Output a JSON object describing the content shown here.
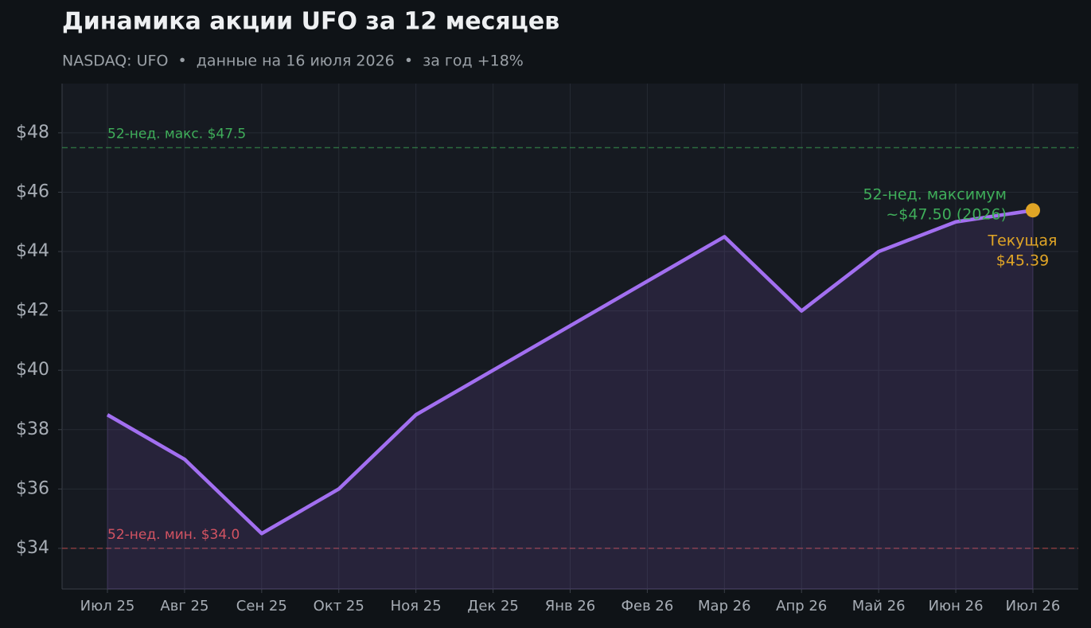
{
  "chart_data": {
    "type": "line",
    "title": "Динамика акции UFO за 12 месяцев",
    "subtitle": "NASDAQ: UFO  •  данные на 16 июля 2026  •  за год +18%",
    "categories": [
      "Июл 25",
      "Авг 25",
      "Сен 25",
      "Окт 25",
      "Ноя 25",
      "Дек 25",
      "Янв 26",
      "Фев 26",
      "Мар 26",
      "Апр 26",
      "Май 26",
      "Июн 26",
      "Июл 26"
    ],
    "series": [
      {
        "name": "UFO",
        "color": "#a26ff0",
        "values": [
          38.5,
          37,
          34.5,
          36,
          38.5,
          40,
          41.5,
          43,
          44.5,
          42,
          44,
          45,
          45.39
        ],
        "value_labels": [
          null,
          null,
          null,
          null,
          null,
          null,
          null,
          null,
          null,
          null,
          null,
          null,
          "$45.39"
        ]
      }
    ],
    "current_label": "Текущая",
    "current_color": "#e0a526",
    "ylim": [
      32.63,
      49.66
    ],
    "yticks": [
      {
        "value": 34,
        "label": "$34"
      },
      {
        "value": 36,
        "label": "$36"
      },
      {
        "value": 38,
        "label": "$38"
      },
      {
        "value": 40,
        "label": "$40"
      },
      {
        "value": 42,
        "label": "$42"
      },
      {
        "value": 44,
        "label": "$44"
      },
      {
        "value": 46,
        "label": "$46"
      },
      {
        "value": 48,
        "label": "$48"
      }
    ],
    "grid": true,
    "reference_lines": [
      {
        "value": 47.5,
        "label": "52-нед. макс. $47.5",
        "color": "#3fae5a"
      },
      {
        "value": 34.0,
        "label": "52-нед. мин. $34.0",
        "color": "#d9504f"
      }
    ],
    "annotations": [
      {
        "lines": [
          "52-нед. максимум",
          "~$47.50 (2026)"
        ],
        "color": "#3fae5a"
      }
    ]
  }
}
